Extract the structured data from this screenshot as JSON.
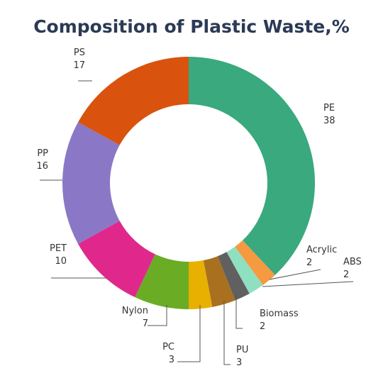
{
  "chart_data": {
    "type": "pie",
    "variant": "donut",
    "title": "Composition of Plastic Waste,%",
    "categories": [
      "PE",
      "Acrylic",
      "ABS",
      "Biomass",
      "PU",
      "PC",
      "Nylon",
      "PET",
      "PP",
      "PS"
    ],
    "values": [
      38,
      2,
      2,
      2,
      3,
      3,
      7,
      10,
      16,
      17
    ],
    "colors": [
      "#3aa97e",
      "#f59a40",
      "#8ee0c1",
      "#606060",
      "#a8701f",
      "#e8b000",
      "#6aac24",
      "#e0288c",
      "#8a78c6",
      "#d9530e"
    ],
    "legend": "none"
  }
}
